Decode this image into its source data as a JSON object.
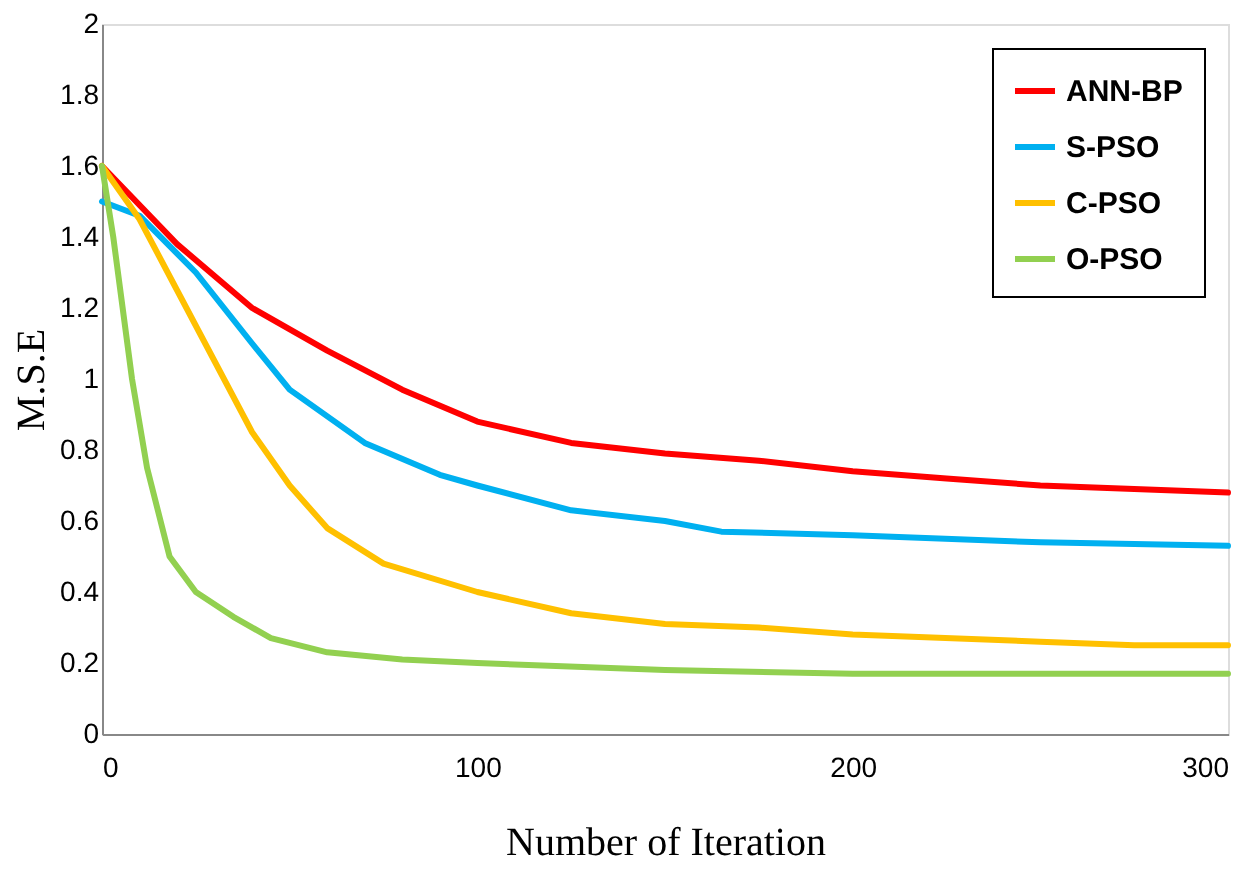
{
  "chart_data": {
    "type": "line",
    "xlabel": "Number of Iteration",
    "ylabel": "M.S.E",
    "xlim": [
      0,
      300
    ],
    "xticks": [
      0,
      100,
      200,
      300
    ],
    "ylim": [
      0,
      2
    ],
    "yticks": [
      0,
      0.2,
      0.4,
      0.6,
      0.8,
      1,
      1.2,
      1.4,
      1.6,
      1.8,
      2
    ],
    "legend": "top right",
    "grid": false,
    "series": [
      {
        "name": "ANN-BP",
        "color": "#ff0000",
        "x": [
          0,
          20,
          40,
          60,
          80,
          100,
          125,
          150,
          175,
          200,
          225,
          250,
          275,
          300
        ],
        "values": [
          1.6,
          1.38,
          1.2,
          1.08,
          0.97,
          0.88,
          0.82,
          0.79,
          0.77,
          0.74,
          0.72,
          0.7,
          0.69,
          0.68
        ]
      },
      {
        "name": "S-PSO",
        "color": "#00b0f0",
        "x": [
          0,
          10,
          25,
          40,
          50,
          70,
          90,
          100,
          125,
          150,
          165,
          200,
          250,
          300
        ],
        "values": [
          1.5,
          1.46,
          1.3,
          1.1,
          0.97,
          0.82,
          0.73,
          0.7,
          0.63,
          0.6,
          0.57,
          0.56,
          0.54,
          0.53
        ]
      },
      {
        "name": "C-PSO",
        "color": "#ffc000",
        "x": [
          0,
          10,
          20,
          30,
          40,
          50,
          60,
          75,
          100,
          125,
          150,
          175,
          200,
          250,
          275,
          300
        ],
        "values": [
          1.6,
          1.45,
          1.25,
          1.05,
          0.85,
          0.7,
          0.58,
          0.48,
          0.4,
          0.34,
          0.31,
          0.3,
          0.28,
          0.26,
          0.25,
          0.25
        ]
      },
      {
        "name": "O-PSO",
        "color": "#92d050",
        "x": [
          0,
          3,
          8,
          12,
          18,
          25,
          35,
          45,
          60,
          80,
          100,
          150,
          200,
          250,
          300
        ],
        "values": [
          1.6,
          1.4,
          1.0,
          0.75,
          0.5,
          0.4,
          0.33,
          0.27,
          0.23,
          0.21,
          0.2,
          0.18,
          0.17,
          0.17,
          0.17
        ]
      }
    ]
  }
}
